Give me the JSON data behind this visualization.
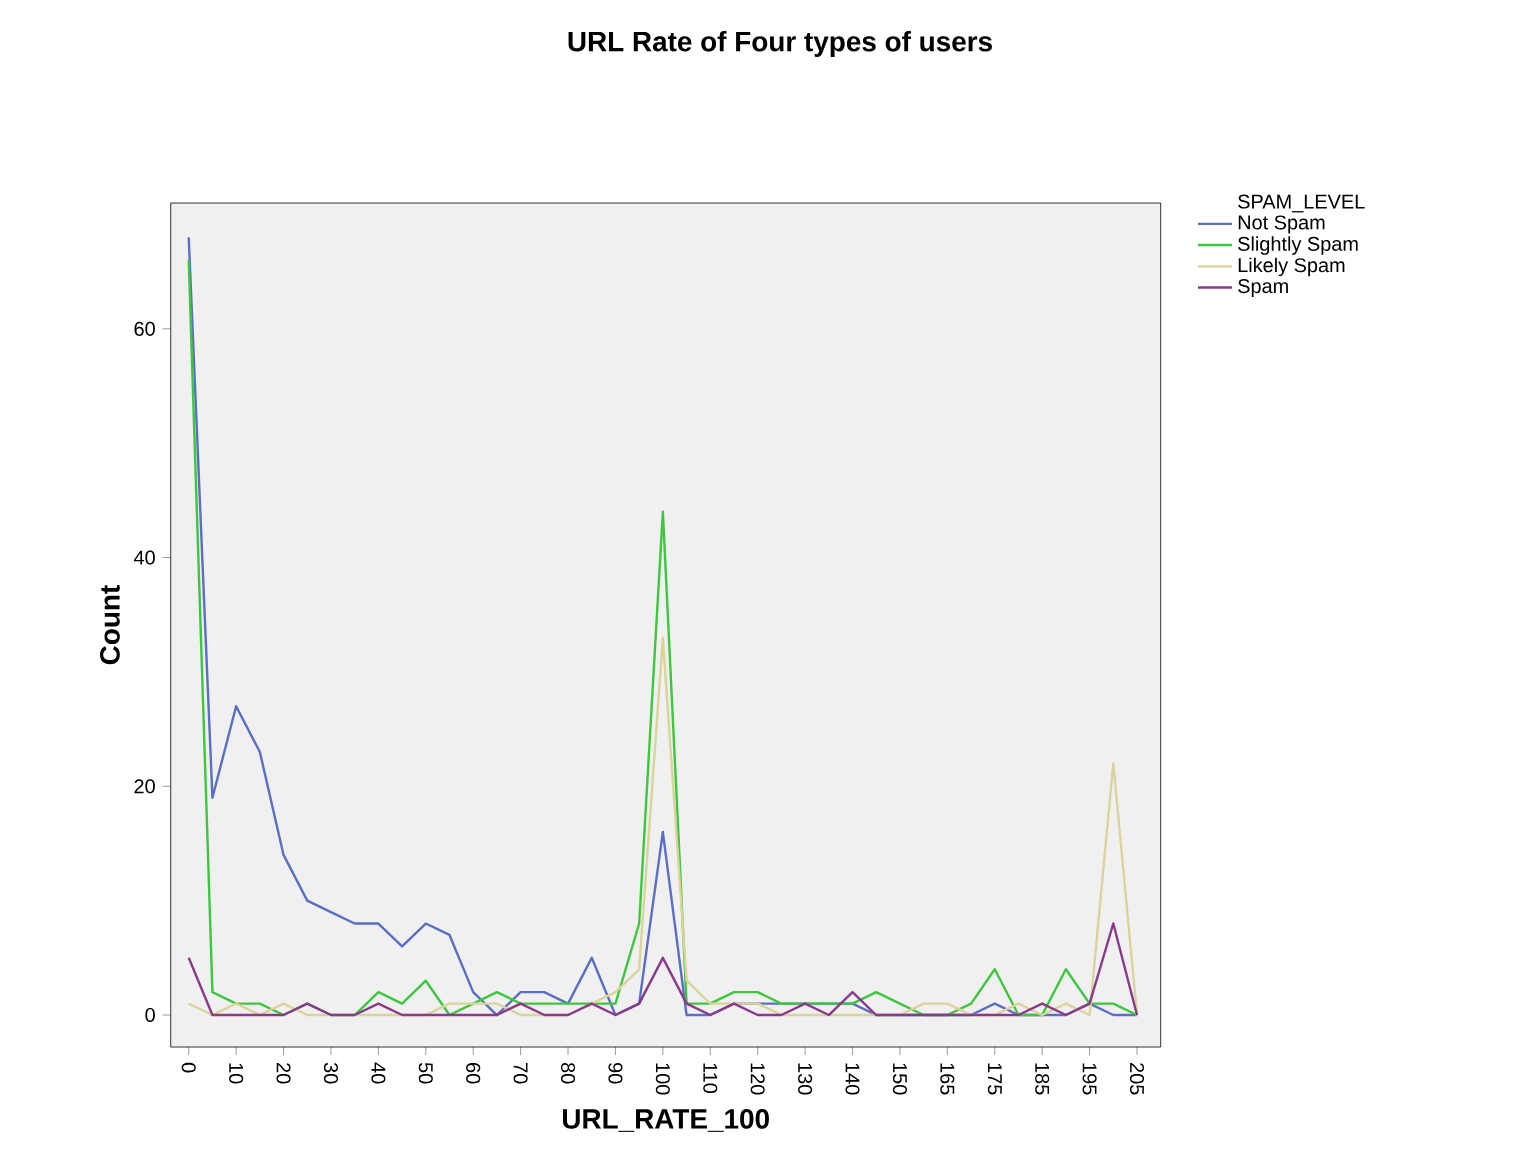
{
  "chart_data": {
    "type": "line",
    "title": "URL Rate of Four types of users",
    "xlabel": "URL_RATE_100",
    "ylabel": "Count",
    "legend_title": "SPAM_LEVEL",
    "categories": [
      "0",
      null,
      "10",
      null,
      "20",
      null,
      "30",
      null,
      "40",
      null,
      "50",
      null,
      "60",
      null,
      "70",
      null,
      "80",
      null,
      "90",
      null,
      "100",
      null,
      "110",
      null,
      "120",
      null,
      "130",
      null,
      "140",
      null,
      "150",
      null,
      "165",
      null,
      "175",
      null,
      "185",
      null,
      "195",
      null,
      "205"
    ],
    "series": [
      {
        "name": "Not Spam",
        "color": "#5a6fc4",
        "values": [
          68,
          19,
          27,
          23,
          14,
          10,
          9,
          8,
          8,
          6,
          8,
          7,
          2,
          0,
          2,
          2,
          1,
          5,
          0,
          1,
          16,
          0,
          0,
          1,
          1,
          1,
          1,
          1,
          1,
          0,
          0,
          0,
          0,
          0,
          1,
          0,
          0,
          0,
          1,
          0,
          0
        ]
      },
      {
        "name": "Slightly Spam",
        "color": "#3ec63e",
        "values": [
          66,
          2,
          1,
          1,
          0,
          1,
          0,
          0,
          2,
          1,
          3,
          0,
          1,
          2,
          1,
          1,
          1,
          1,
          1,
          8,
          44,
          1,
          1,
          2,
          2,
          1,
          1,
          1,
          1,
          2,
          1,
          0,
          0,
          1,
          4,
          0,
          0,
          4,
          1,
          1,
          0
        ]
      },
      {
        "name": "Likely Spam",
        "color": "#d9d49c",
        "values": [
          1,
          0,
          1,
          0,
          1,
          0,
          0,
          0,
          0,
          0,
          0,
          1,
          1,
          1,
          0,
          0,
          0,
          1,
          2,
          4,
          33,
          3,
          1,
          1,
          1,
          0,
          0,
          0,
          0,
          0,
          0,
          1,
          1,
          0,
          0,
          1,
          0,
          1,
          0,
          22,
          0
        ]
      },
      {
        "name": "Spam",
        "color": "#8b3a8b",
        "values": [
          5,
          0,
          0,
          0,
          0,
          1,
          0,
          0,
          1,
          0,
          0,
          0,
          0,
          0,
          1,
          0,
          0,
          1,
          0,
          1,
          5,
          1,
          0,
          1,
          0,
          0,
          1,
          0,
          2,
          0,
          0,
          0,
          0,
          0,
          0,
          0,
          1,
          0,
          1,
          8,
          0
        ]
      }
    ],
    "ylim": [
      -2.8,
      71
    ],
    "yticks": [
      0,
      20,
      40,
      60
    ],
    "grid": false,
    "legend": "top right",
    "marker": "none",
    "line_style": "solid"
  }
}
